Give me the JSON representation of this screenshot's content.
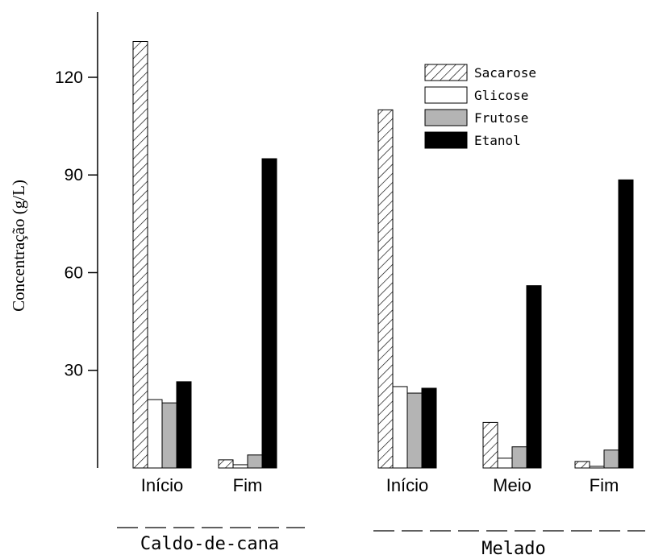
{
  "chart_data": {
    "type": "bar",
    "ylabel": "Concentração (g/L)",
    "ylim": [
      0,
      140
    ],
    "yticks": [
      30,
      60,
      90,
      120
    ],
    "grid": false,
    "legend_position": "top-right",
    "groups": [
      {
        "label": "Caldo-de-cana",
        "categories": [
          "Início",
          "Fim"
        ]
      },
      {
        "label": "Melado",
        "categories": [
          "Início",
          "Meio",
          "Fim"
        ]
      }
    ],
    "categories": [
      "Início",
      "Fim",
      "Início",
      "Meio",
      "Fim"
    ],
    "series": [
      {
        "name": "Sacarose",
        "pattern": "hatch",
        "color": "#ffffff",
        "values": [
          131,
          2.5,
          110,
          14,
          2
        ]
      },
      {
        "name": "Glicose",
        "pattern": "solid",
        "color": "#ffffff",
        "values": [
          21,
          1,
          25,
          3,
          0.5
        ]
      },
      {
        "name": "Frutose",
        "pattern": "solid",
        "color": "#b4b4b4",
        "values": [
          20,
          4,
          23,
          6.5,
          5.5
        ]
      },
      {
        "name": "Etanol",
        "pattern": "solid",
        "color": "#000000",
        "values": [
          26.5,
          95,
          24.5,
          56,
          88.5
        ]
      }
    ]
  }
}
